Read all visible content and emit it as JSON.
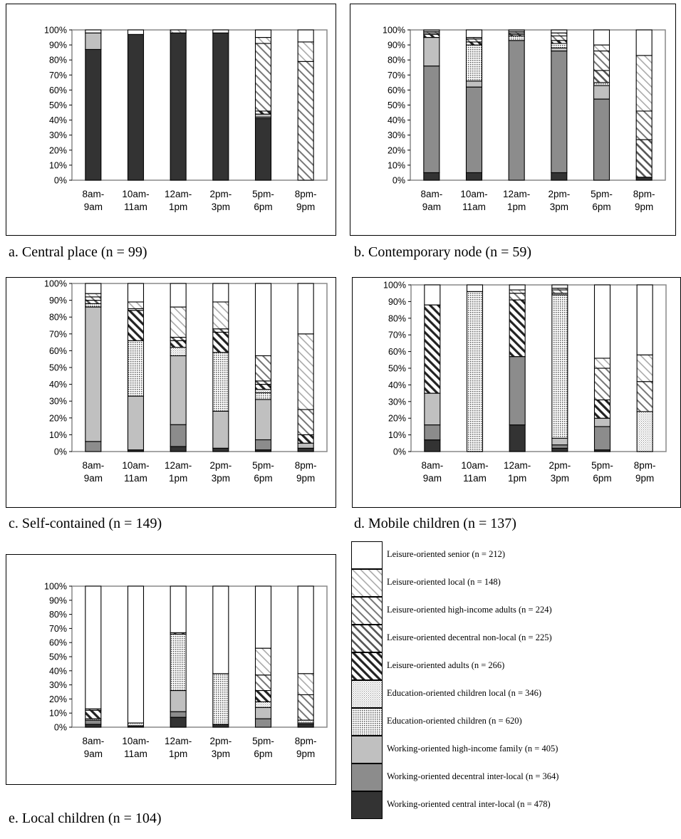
{
  "legend": [
    {
      "label": "Leisure-oriented senior (n = 212)",
      "pattern": "white"
    },
    {
      "label": "Leisure-oriented local (n = 148)",
      "pattern": "hatch-light"
    },
    {
      "label": "Leisure-oriented high-income adults (n = 224)",
      "pattern": "hatch-medium"
    },
    {
      "label": "Leisure-oriented decentral non-local (n = 225)",
      "pattern": "hatch-heavy"
    },
    {
      "label": "Leisure-oriented adults (n = 266)",
      "pattern": "hatch-bold"
    },
    {
      "label": "Education-oriented children local (n = 346)",
      "pattern": "dots-fine"
    },
    {
      "label": "Education-oriented children (n = 620)",
      "pattern": "dots-coarse"
    },
    {
      "label": "Working-oriented high-income family (n = 405)",
      "pattern": "light-gray"
    },
    {
      "label": "Working-oriented decentral inter-local (n = 364)",
      "pattern": "mid-gray"
    },
    {
      "label": "Working-oriented central inter-local (n = 478)",
      "pattern": "dark"
    }
  ],
  "chart_data": [
    {
      "id": "a",
      "type": "bar",
      "stacked": true,
      "caption": "a. Central place (n = 99)",
      "categories": [
        "8am-9am",
        "10am-11am",
        "12am-1pm",
        "2pm-3pm",
        "5pm-6pm",
        "8pm-9pm"
      ],
      "y_ticks": [
        "0%",
        "10%",
        "20%",
        "30%",
        "40%",
        "50%",
        "60%",
        "70%",
        "80%",
        "90%",
        "100%"
      ],
      "ylim": [
        0,
        100
      ],
      "series": [
        {
          "values": [
            87,
            97,
            98,
            98,
            41,
            0
          ]
        },
        {
          "values": [
            0,
            0,
            0,
            0,
            1,
            0
          ]
        },
        {
          "values": [
            11,
            0,
            0,
            0,
            2,
            0
          ]
        },
        {
          "values": [
            0,
            0,
            0,
            0,
            0,
            0
          ]
        },
        {
          "values": [
            0,
            0,
            0,
            0,
            0,
            0
          ]
        },
        {
          "values": [
            0,
            0,
            0,
            0,
            2,
            0
          ]
        },
        {
          "values": [
            0,
            0,
            0,
            0,
            0,
            0
          ]
        },
        {
          "values": [
            0,
            0,
            0,
            0,
            45,
            79
          ]
        },
        {
          "values": [
            0,
            0,
            2,
            0,
            4,
            13
          ]
        },
        {
          "values": [
            2,
            3,
            0,
            2,
            5,
            8
          ]
        }
      ]
    },
    {
      "id": "b",
      "type": "bar",
      "stacked": true,
      "caption": "b. Contemporary node (n = 59)",
      "categories": [
        "8am-9am",
        "10am-11am",
        "12am-1pm",
        "2pm-3pm",
        "5pm-6pm",
        "8pm-9pm"
      ],
      "y_ticks": [
        "0%",
        "10%",
        "20%",
        "30%",
        "40%",
        "50%",
        "60%",
        "70%",
        "80%",
        "90%",
        "100%"
      ],
      "ylim": [
        0,
        100
      ],
      "series": [
        {
          "values": [
            5,
            5,
            0,
            5,
            0,
            2
          ]
        },
        {
          "values": [
            71,
            57,
            93,
            81,
            54,
            0
          ]
        },
        {
          "values": [
            19,
            4,
            0,
            2,
            9,
            0
          ]
        },
        {
          "values": [
            0,
            24,
            3,
            3,
            2,
            0
          ]
        },
        {
          "values": [
            0,
            0,
            0,
            0,
            0,
            0
          ]
        },
        {
          "values": [
            2,
            2,
            0,
            2,
            0,
            0
          ]
        },
        {
          "values": [
            0,
            0,
            1,
            0,
            8,
            25
          ]
        },
        {
          "values": [
            1,
            2,
            1,
            3,
            13,
            19
          ]
        },
        {
          "values": [
            1,
            1,
            1,
            2,
            4,
            37
          ]
        },
        {
          "values": [
            1,
            5,
            1,
            2,
            10,
            17
          ]
        }
      ]
    },
    {
      "id": "c",
      "type": "bar",
      "stacked": true,
      "caption": "c. Self-contained  (n = 149)",
      "categories": [
        "8am-9am",
        "10am-11am",
        "12am-1pm",
        "2pm-3pm",
        "5pm-6pm",
        "8pm-9pm"
      ],
      "y_ticks": [
        "0%",
        "10%",
        "20%",
        "30%",
        "40%",
        "50%",
        "60%",
        "70%",
        "80%",
        "90%",
        "100%"
      ],
      "ylim": [
        0,
        100
      ],
      "series": [
        {
          "values": [
            0,
            1,
            3,
            2,
            1,
            2
          ]
        },
        {
          "values": [
            6,
            0,
            13,
            0,
            6,
            0
          ]
        },
        {
          "values": [
            80,
            32,
            41,
            22,
            24,
            3
          ]
        },
        {
          "values": [
            2,
            33,
            0,
            35,
            4,
            0
          ]
        },
        {
          "values": [
            0,
            0,
            5,
            0,
            2,
            0
          ]
        },
        {
          "values": [
            0,
            18,
            4,
            12,
            3,
            5
          ]
        },
        {
          "values": [
            2,
            0,
            2,
            2,
            2,
            0
          ]
        },
        {
          "values": [
            2,
            1,
            0,
            0,
            15,
            15
          ]
        },
        {
          "values": [
            2,
            4,
            18,
            16,
            0,
            45
          ]
        },
        {
          "values": [
            6,
            11,
            14,
            11,
            43,
            30
          ]
        }
      ]
    },
    {
      "id": "d",
      "type": "bar",
      "stacked": true,
      "caption": "d. Mobile children (n = 137)",
      "categories": [
        "8am-9am",
        "10am-11am",
        "12am-1pm",
        "2pm-3pm",
        "5pm-6pm",
        "8pm-9pm"
      ],
      "y_ticks": [
        "0%",
        "10%",
        "20%",
        "30%",
        "40%",
        "50%",
        "60%",
        "70%",
        "80%",
        "90%",
        "100%"
      ],
      "ylim": [
        0,
        100
      ],
      "series": [
        {
          "values": [
            7,
            0,
            16,
            2,
            1,
            0
          ]
        },
        {
          "values": [
            9,
            0,
            41,
            2,
            14,
            0
          ]
        },
        {
          "values": [
            19,
            0,
            0,
            4,
            5,
            0
          ]
        },
        {
          "values": [
            0,
            96,
            0,
            86,
            0,
            0
          ]
        },
        {
          "values": [
            0,
            0,
            0,
            1,
            0,
            24
          ]
        },
        {
          "values": [
            53,
            0,
            34,
            0,
            11,
            0
          ]
        },
        {
          "values": [
            0,
            0,
            0,
            0,
            0,
            0
          ]
        },
        {
          "values": [
            0,
            0,
            4,
            2,
            19,
            18
          ]
        },
        {
          "values": [
            0,
            0,
            2,
            1,
            6,
            16
          ]
        },
        {
          "values": [
            12,
            4,
            3,
            2,
            44,
            42
          ]
        }
      ]
    },
    {
      "id": "e",
      "type": "bar",
      "stacked": true,
      "caption": "e. Local children (n = 104)",
      "categories": [
        "8am-9am",
        "10am-11am",
        "12am-1pm",
        "2pm-3pm",
        "5pm-6pm",
        "8pm-9pm"
      ],
      "y_ticks": [
        "0%",
        "10%",
        "20%",
        "30%",
        "40%",
        "50%",
        "60%",
        "70%",
        "80%",
        "90%",
        "100%"
      ],
      "ylim": [
        0,
        100
      ],
      "series": [
        {
          "values": [
            2,
            1,
            7,
            2,
            0,
            2
          ]
        },
        {
          "values": [
            3,
            0,
            4,
            0,
            6,
            1
          ]
        },
        {
          "values": [
            0,
            0,
            15,
            0,
            8,
            0
          ]
        },
        {
          "values": [
            0,
            0,
            40,
            36,
            0,
            0
          ]
        },
        {
          "values": [
            1,
            2,
            0,
            0,
            4,
            2
          ]
        },
        {
          "values": [
            6,
            0,
            0,
            0,
            8,
            0
          ]
        },
        {
          "values": [
            0,
            0,
            1,
            0,
            0,
            0
          ]
        },
        {
          "values": [
            1,
            0,
            0,
            0,
            11,
            18
          ]
        },
        {
          "values": [
            0,
            0,
            0,
            0,
            19,
            15
          ]
        },
        {
          "values": [
            87,
            97,
            33,
            62,
            44,
            62
          ]
        }
      ]
    }
  ]
}
